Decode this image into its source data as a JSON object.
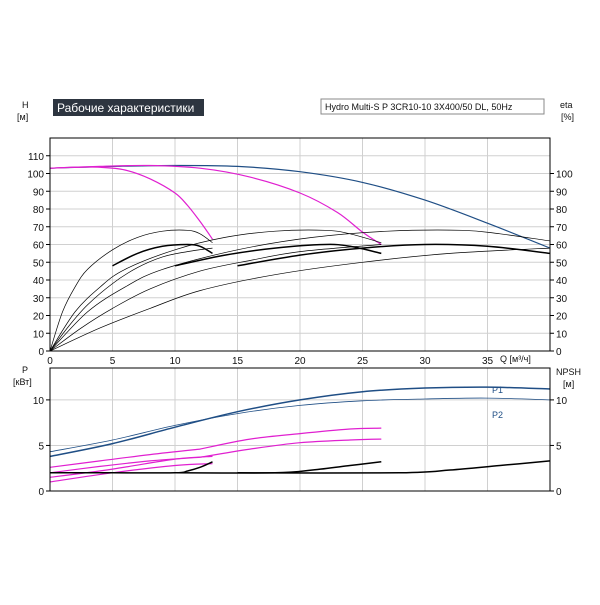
{
  "header": {
    "title": "Рабочие характеристики",
    "model": "Hydro Multi-S P 3CR10-10 3X400/50 DL, 50Hz"
  },
  "colors": {
    "blue": "#1f4e85",
    "magenta": "#e020d0",
    "black": "#000000",
    "title_bg": "#2d3540"
  },
  "chart_data": [
    {
      "type": "line",
      "axes": {
        "x": {
          "label": "Q [м³/ч]",
          "ticks": [
            0,
            5,
            10,
            15,
            20,
            25,
            30,
            35
          ],
          "range": [
            0,
            40
          ]
        },
        "y_left": {
          "label": "H",
          "unit": "[м]",
          "ticks": [
            0,
            10,
            20,
            30,
            40,
            50,
            60,
            70,
            80,
            90,
            100,
            110
          ],
          "range": [
            0,
            120
          ]
        },
        "y_right": {
          "label": "eta",
          "unit": "[%]",
          "ticks": [
            0,
            10,
            20,
            30,
            40,
            50,
            60,
            70,
            80,
            90,
            100
          ],
          "range": [
            0,
            120
          ]
        }
      },
      "grid": true,
      "series": [
        {
          "color": "blue",
          "axis": "left",
          "points": [
            [
              0,
              103
            ],
            [
              5,
              104
            ],
            [
              10,
              104.5
            ],
            [
              15,
              104
            ],
            [
              20,
              101
            ],
            [
              25,
              95
            ],
            [
              30,
              85
            ],
            [
              35,
              72
            ],
            [
              40,
              58
            ]
          ]
        },
        {
          "color": "magenta",
          "axis": "left",
          "points": [
            [
              0,
              103
            ],
            [
              2,
              103.5
            ],
            [
              4,
              103.5
            ],
            [
              6,
              102
            ],
            [
              8,
              97
            ],
            [
              10,
              89
            ],
            [
              11,
              82
            ],
            [
              12,
              73
            ],
            [
              13,
              63
            ]
          ]
        },
        {
          "color": "magenta",
          "axis": "left",
          "points": [
            [
              0,
              103
            ],
            [
              4,
              104
            ],
            [
              8,
              104.5
            ],
            [
              12,
              103
            ],
            [
              16,
              98
            ],
            [
              20,
              89
            ],
            [
              23,
              78
            ],
            [
              25,
              67
            ],
            [
              26.5,
              60
            ]
          ]
        },
        {
          "color": "black",
          "width": 1.5,
          "axis": "right",
          "points": [
            [
              5,
              48
            ],
            [
              7,
              55
            ],
            [
              9,
              59
            ],
            [
              11,
              60
            ],
            [
              12,
              59
            ],
            [
              13,
              55
            ]
          ]
        },
        {
          "color": "black",
          "width": 1.5,
          "axis": "right",
          "points": [
            [
              10,
              48
            ],
            [
              14,
              54
            ],
            [
              18,
              58
            ],
            [
              22,
              60
            ],
            [
              24,
              59
            ],
            [
              26.5,
              55
            ]
          ]
        },
        {
          "color": "black",
          "width": 1.5,
          "axis": "right",
          "points": [
            [
              15,
              48
            ],
            [
              20,
              54
            ],
            [
              25,
              58
            ],
            [
              30,
              60
            ],
            [
              35,
              59
            ],
            [
              40,
              55
            ]
          ]
        },
        {
          "color": "black",
          "width": 0.7,
          "axis": "right",
          "points": [
            [
              0,
              0
            ],
            [
              1,
              22
            ],
            [
              2,
              36
            ],
            [
              3,
              46
            ],
            [
              5,
              57
            ],
            [
              7,
              64
            ],
            [
              9,
              67.5
            ],
            [
              11,
              68
            ],
            [
              12,
              66
            ],
            [
              13,
              61
            ]
          ]
        },
        {
          "color": "black",
          "width": 0.7,
          "axis": "right",
          "points": [
            [
              0,
              0
            ],
            [
              2,
              22
            ],
            [
              4,
              36
            ],
            [
              6,
              46
            ],
            [
              10,
              57
            ],
            [
              14,
              64
            ],
            [
              18,
              67.5
            ],
            [
              22,
              68
            ],
            [
              24,
              66
            ],
            [
              26.5,
              61
            ]
          ]
        },
        {
          "color": "black",
          "width": 0.7,
          "axis": "right",
          "points": [
            [
              0,
              0
            ],
            [
              3,
              22
            ],
            [
              6,
              36
            ],
            [
              9,
              46
            ],
            [
              15,
              57
            ],
            [
              21,
              64
            ],
            [
              27,
              67.5
            ],
            [
              33,
              68
            ],
            [
              36,
              66
            ],
            [
              40,
              62
            ]
          ]
        },
        {
          "color": "black",
          "width": 0.7,
          "axis": "right",
          "points": [
            [
              0,
              0
            ],
            [
              1.5,
              14
            ],
            [
              3,
              26
            ],
            [
              5,
              38
            ],
            [
              7,
              47
            ],
            [
              9,
              53
            ],
            [
              11,
              56
            ],
            [
              13,
              58
            ]
          ]
        },
        {
          "color": "black",
          "width": 0.7,
          "axis": "right",
          "points": [
            [
              0,
              0
            ],
            [
              2.5,
              13
            ],
            [
              5,
              24
            ],
            [
              8,
              35
            ],
            [
              12,
              45
            ],
            [
              16,
              51
            ],
            [
              20,
              56
            ],
            [
              26.5,
              60
            ]
          ]
        },
        {
          "color": "black",
          "width": 0.7,
          "axis": "right",
          "points": [
            [
              0,
              0
            ],
            [
              4,
              13
            ],
            [
              8,
              24
            ],
            [
              12,
              34
            ],
            [
              18,
              43
            ],
            [
              25,
              50
            ],
            [
              32,
              55
            ],
            [
              40,
              58
            ]
          ]
        }
      ]
    },
    {
      "type": "line",
      "axes": {
        "x": {
          "ticks": [
            0,
            5,
            10,
            15,
            20,
            25,
            30,
            35
          ],
          "range": [
            0,
            40
          ]
        },
        "y_left": {
          "label": "P",
          "unit": "[кВт]",
          "ticks": [
            0,
            5,
            10
          ],
          "range": [
            0,
            13.5
          ]
        },
        "y_right": {
          "label": "NPSH",
          "unit": "[м]",
          "ticks": [
            0,
            5,
            10
          ],
          "range": [
            0,
            13.5
          ]
        }
      },
      "grid": true,
      "series": [
        {
          "name": "P1",
          "color": "blue",
          "width": 1.5,
          "points": [
            [
              0,
              3.8
            ],
            [
              5,
              5.2
            ],
            [
              10,
              7.0
            ],
            [
              15,
              8.7
            ],
            [
              20,
              10.0
            ],
            [
              25,
              10.9
            ],
            [
              30,
              11.3
            ],
            [
              35,
              11.4
            ],
            [
              40,
              11.2
            ]
          ]
        },
        {
          "name": "P2",
          "color": "blue",
          "width": 0.8,
          "points": [
            [
              0,
              4.3
            ],
            [
              5,
              5.6
            ],
            [
              10,
              7.2
            ],
            [
              15,
              8.5
            ],
            [
              20,
              9.4
            ],
            [
              25,
              9.9
            ],
            [
              30,
              10.1
            ],
            [
              35,
              10.2
            ],
            [
              40,
              10.0
            ]
          ]
        },
        {
          "color": "magenta",
          "points": [
            [
              0,
              2.6
            ],
            [
              4,
              3.3
            ],
            [
              8,
              4.0
            ],
            [
              12,
              4.6
            ]
          ]
        },
        {
          "color": "magenta",
          "points": [
            [
              0,
              2.0
            ],
            [
              4,
              2.7
            ],
            [
              8,
              3.3
            ],
            [
              12,
              3.7
            ]
          ]
        },
        {
          "color": "magenta",
          "points": [
            [
              0,
              1.5
            ],
            [
              5,
              2.4
            ],
            [
              10,
              3.5
            ],
            [
              13,
              3.8
            ]
          ]
        },
        {
          "color": "magenta",
          "points": [
            [
              0,
              1.0
            ],
            [
              5,
              2.0
            ],
            [
              10,
              2.8
            ],
            [
              13,
              3.0
            ]
          ]
        },
        {
          "color": "magenta",
          "points": [
            [
              12,
              4.6
            ],
            [
              16,
              5.7
            ],
            [
              20,
              6.3
            ],
            [
              24,
              6.8
            ],
            [
              26.5,
              6.9
            ]
          ]
        },
        {
          "color": "magenta",
          "points": [
            [
              12,
              3.7
            ],
            [
              16,
              4.6
            ],
            [
              20,
              5.3
            ],
            [
              24,
              5.6
            ],
            [
              26.5,
              5.7
            ]
          ]
        },
        {
          "color": "black",
          "width": 1.5,
          "points": [
            [
              0,
              2.0
            ],
            [
              5,
              2.0
            ],
            [
              10,
              2.0
            ],
            [
              11,
              2.2
            ],
            [
              12,
              2.6
            ],
            [
              13,
              3.2
            ]
          ]
        },
        {
          "color": "black",
          "width": 1.5,
          "points": [
            [
              10,
              2.0
            ],
            [
              18,
              2.0
            ],
            [
              21,
              2.3
            ],
            [
              24,
              2.8
            ],
            [
              26.5,
              3.2
            ]
          ]
        },
        {
          "color": "black",
          "width": 1.5,
          "points": [
            [
              15,
              2.0
            ],
            [
              28,
              2.0
            ],
            [
              32,
              2.3
            ],
            [
              36,
              2.8
            ],
            [
              40,
              3.3
            ]
          ]
        }
      ]
    }
  ]
}
